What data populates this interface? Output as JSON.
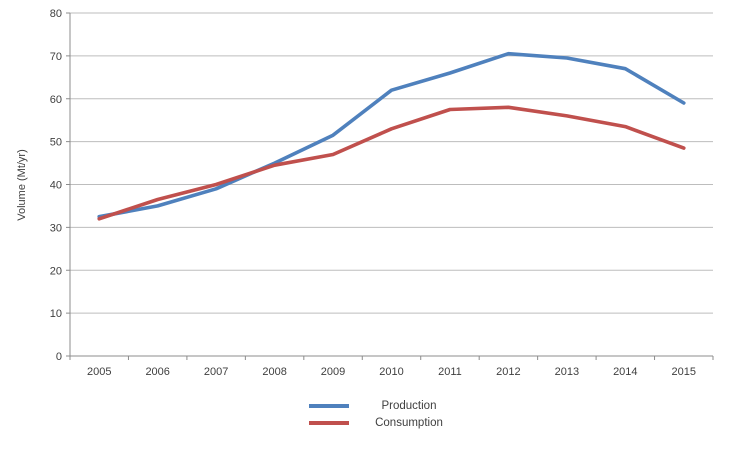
{
  "chart_data": {
    "type": "line",
    "title": "",
    "ylabel": "Volume (Mt/yr)",
    "xlabel": "",
    "categories": [
      "2005",
      "2006",
      "2007",
      "2008",
      "2009",
      "2010",
      "2011",
      "2012",
      "2013",
      "2014",
      "2015"
    ],
    "series": [
      {
        "name": "Production",
        "color": "#4F81BD",
        "values": [
          32.5,
          35,
          39,
          45,
          51.5,
          62,
          66,
          70.5,
          69.5,
          67,
          59
        ]
      },
      {
        "name": "Consumption",
        "color": "#C0504D",
        "values": [
          32,
          36.5,
          40,
          44.5,
          47,
          53,
          57.5,
          58,
          56,
          53.5,
          48.5
        ]
      }
    ],
    "ylim": [
      0,
      80
    ],
    "ytick_step": 10,
    "y_ticks": [
      0,
      10,
      20,
      30,
      40,
      50,
      60,
      70,
      80
    ],
    "grid": "horizontal",
    "legend_position": "bottom-center",
    "colors": {
      "gridline": "#BDBDBD",
      "axis": "#8C8C8C",
      "tick_text": "#3F3F3F"
    }
  }
}
